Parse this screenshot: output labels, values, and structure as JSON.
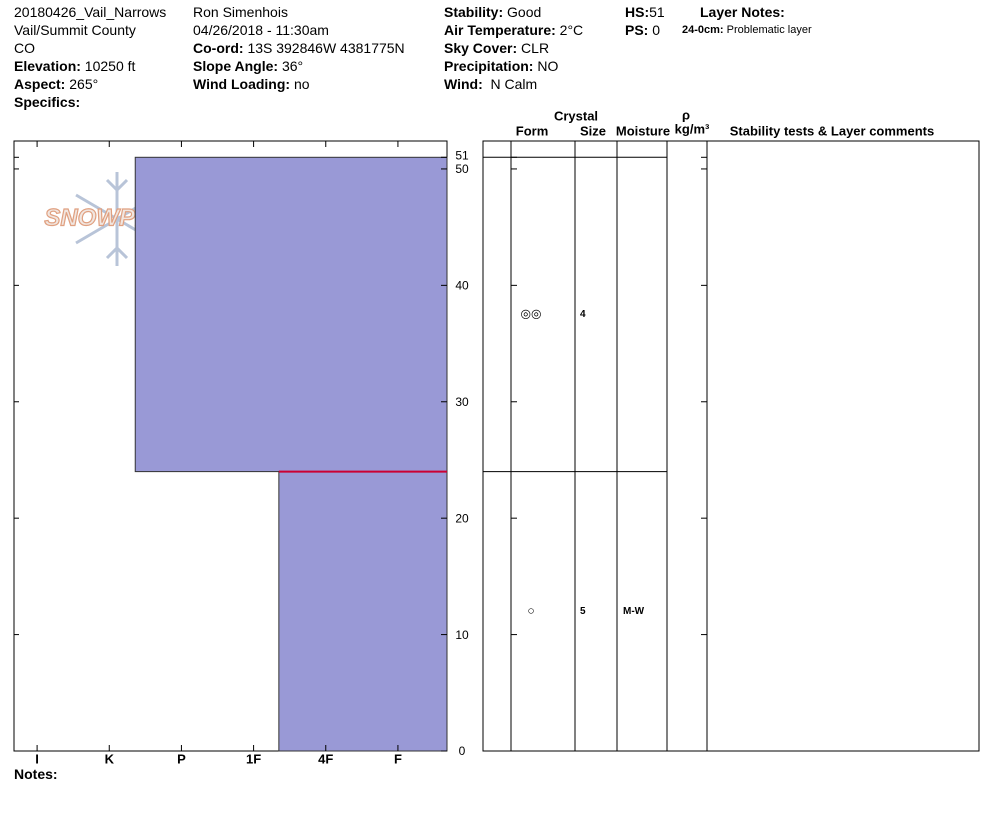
{
  "header": {
    "col1": [
      "20180426_Vail_Narrows",
      "Vail/Summit County",
      "CO"
    ],
    "elevation": {
      "label": "Elevation:",
      "value": "10250 ft"
    },
    "aspect": {
      "label": "Aspect:",
      "value": "265°"
    },
    "specifics": {
      "label": "Specifics:"
    },
    "observer": "Ron Simenhois",
    "datetime": "04/26/2018 - 11:30am",
    "coord": {
      "label": "Co-ord:",
      "value": "13S 392846W 4381775N"
    },
    "slope": {
      "label": "Slope Angle:",
      "value": "36°"
    },
    "wind_loading": {
      "label": "Wind Loading:",
      "value": "no"
    },
    "stability": {
      "label": "Stability:",
      "value": "Good"
    },
    "air_temp": {
      "label": "Air Temperature:",
      "value": "2°C"
    },
    "sky": {
      "label": "Sky Cover:",
      "value": "CLR"
    },
    "precip": {
      "label": "Precipitation:",
      "value": "NO"
    },
    "wind": {
      "label": "Wind:",
      "value": "N Calm"
    },
    "hs": {
      "label": "HS:",
      "value": "51"
    },
    "ps": {
      "label": "PS:",
      "value": "0"
    },
    "layer_notes": {
      "label": "Layer Notes:",
      "range": "24-0cm:",
      "text": "Problematic layer"
    }
  },
  "logo": "SNOWPILOT",
  "notes": {
    "label": "Notes:"
  },
  "table": {
    "crystal": "Crystal",
    "form": "Form",
    "size": "Size",
    "moisture": "Moisture",
    "rho": "ρ",
    "density_unit": "kg/m³",
    "comments": "Stability tests & Layer comments"
  },
  "chart_data": {
    "type": "bar",
    "ylim": [
      0,
      52.4
    ],
    "yticks": [
      0,
      10,
      20,
      30,
      40,
      50,
      51
    ],
    "xlim": [
      6.32,
      0.32
    ],
    "xticks": [
      {
        "value": 6,
        "label": "I"
      },
      {
        "value": 5,
        "label": "K"
      },
      {
        "value": 4,
        "label": "P"
      },
      {
        "value": 3,
        "label": "1F"
      },
      {
        "value": 2,
        "label": "4F"
      },
      {
        "value": 1,
        "label": "F"
      }
    ],
    "color": "#9999d6",
    "concern_depth": 24,
    "concern_color": "#cc0033",
    "layers": [
      {
        "top": 51,
        "bottom": 24,
        "hardness": 4.64,
        "form": "◎◎",
        "size": "4"
      },
      {
        "top": 24,
        "bottom": 0,
        "hardness": 2.65,
        "form": "○",
        "size": "5",
        "moisture": "M-W"
      }
    ]
  }
}
